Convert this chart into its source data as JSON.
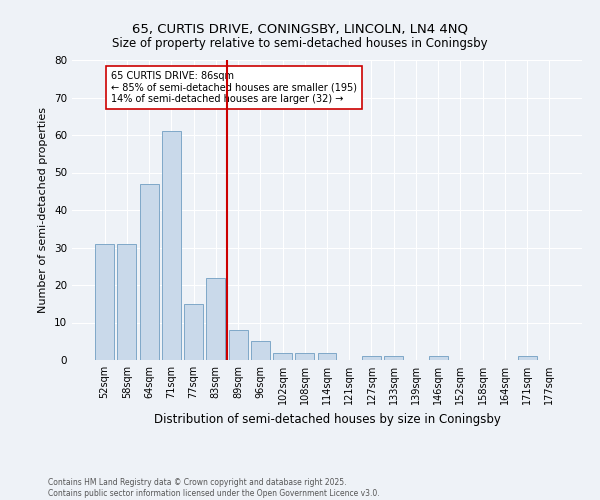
{
  "title1": "65, CURTIS DRIVE, CONINGSBY, LINCOLN, LN4 4NQ",
  "title2": "Size of property relative to semi-detached houses in Coningsby",
  "xlabel": "Distribution of semi-detached houses by size in Coningsby",
  "ylabel": "Number of semi-detached properties",
  "categories": [
    "52sqm",
    "58sqm",
    "64sqm",
    "71sqm",
    "77sqm",
    "83sqm",
    "89sqm",
    "96sqm",
    "102sqm",
    "108sqm",
    "114sqm",
    "121sqm",
    "127sqm",
    "133sqm",
    "139sqm",
    "146sqm",
    "152sqm",
    "158sqm",
    "164sqm",
    "171sqm",
    "177sqm"
  ],
  "values": [
    31,
    31,
    47,
    61,
    15,
    22,
    8,
    5,
    2,
    2,
    2,
    0,
    1,
    1,
    0,
    1,
    0,
    0,
    0,
    1,
    0
  ],
  "bar_color": "#c9d9ea",
  "bar_edge_color": "#7fa8c8",
  "vline_x": 5.5,
  "vline_color": "#cc0000",
  "annotation_text": "65 CURTIS DRIVE: 86sqm\n← 85% of semi-detached houses are smaller (195)\n14% of semi-detached houses are larger (32) →",
  "annotation_box_color": "#cc0000",
  "ylim": [
    0,
    80
  ],
  "yticks": [
    0,
    10,
    20,
    30,
    40,
    50,
    60,
    70,
    80
  ],
  "footer": "Contains HM Land Registry data © Crown copyright and database right 2025.\nContains public sector information licensed under the Open Government Licence v3.0.",
  "bg_color": "#eef2f7",
  "plot_bg_color": "#eef2f7",
  "grid_color": "#ffffff",
  "title1_fontsize": 9.5,
  "title2_fontsize": 8.5,
  "ylabel_fontsize": 8,
  "xlabel_fontsize": 8.5,
  "tick_fontsize": 7,
  "annotation_fontsize": 7,
  "footer_fontsize": 5.5
}
